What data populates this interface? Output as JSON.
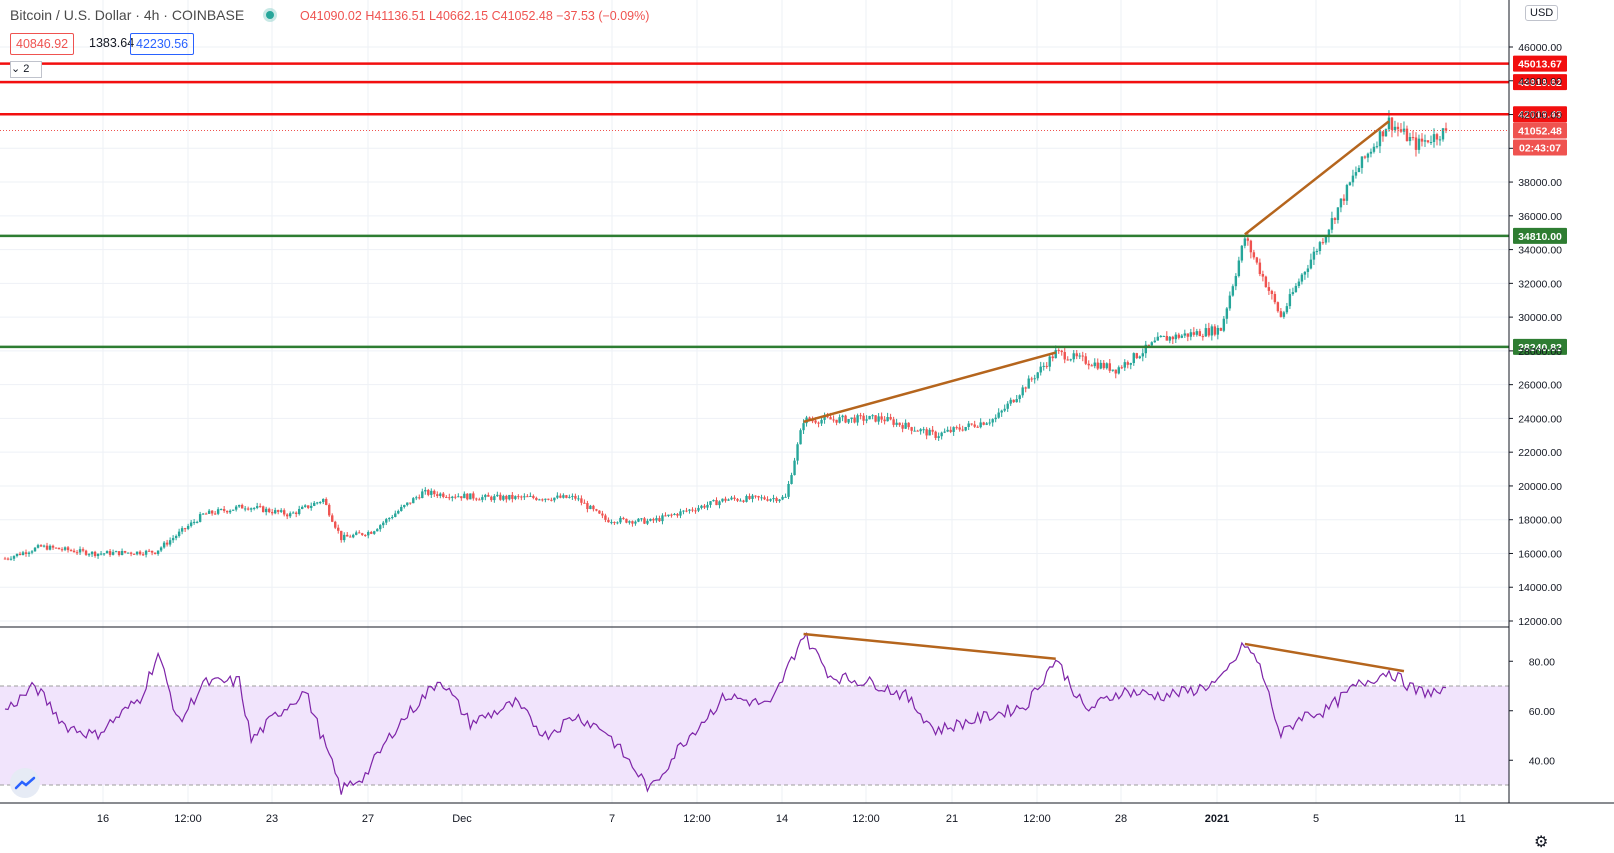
{
  "header": {
    "symbol": "Bitcoin / U.S. Dollar · 4h · COINBASE",
    "open": "O41090.02",
    "high": "H41136.51",
    "low": "L40662.15",
    "close": "C41052.48",
    "change": "−37.53 (−0.09%)",
    "bid": "40846.92",
    "spread": "1383.64",
    "ask": "42230.56",
    "collapse_label": "2"
  },
  "price_scale": {
    "currency": "USD",
    "ticks": [
      "46000.00",
      "44000.00",
      "42000.00",
      "40000.00",
      "38000.00",
      "36000.00",
      "34000.00",
      "32000.00",
      "30000.00",
      "28000.00",
      "26000.00",
      "24000.00",
      "22000.00",
      "20000.00",
      "18000.00",
      "16000.00",
      "14000.00",
      "12000.00"
    ],
    "last_price": "41052.48",
    "countdown": "02:43:07"
  },
  "rsi_scale": {
    "ticks": [
      "80.00",
      "60.00",
      "40.00"
    ]
  },
  "time_axis": {
    "labels": [
      "16",
      "12:00",
      "23",
      "27",
      "Dec",
      "7",
      "12:00",
      "14",
      "12:00",
      "21",
      "12:00",
      "28",
      "2021",
      "5",
      "11"
    ]
  },
  "horizontal_lines": [
    {
      "price": 45013.67,
      "label": "45013.67",
      "color": "#f20f0f"
    },
    {
      "price": 43919.62,
      "label": "43919.62",
      "color": "#f20f0f"
    },
    {
      "price": 42019.43,
      "label": "42019.43",
      "color": "#f20f0f"
    },
    {
      "price": 34810.0,
      "label": "34810.00",
      "color": "#2e7d32"
    },
    {
      "price": 28240.82,
      "label": "28240.82",
      "color": "#2e7d32"
    }
  ],
  "trend_lines": {
    "price": [
      {
        "from": 23800,
        "to": 27900
      },
      {
        "from": 34900,
        "to": 41600
      }
    ],
    "rsi": [
      {
        "from": 91,
        "to": 81
      },
      {
        "from": 87,
        "to": 76
      }
    ]
  },
  "colors": {
    "up": "#26a69a",
    "down": "#ef5350",
    "rsi": "#7e24a8",
    "rsi_band": "#f1e4fc",
    "trend": "#b5651d"
  },
  "chart_data": {
    "type": "candlestick",
    "title": "Bitcoin / U.S. Dollar · 4h · COINBASE",
    "x_labels": [
      "16",
      "12:00",
      "23",
      "27",
      "Dec",
      "7",
      "12:00",
      "14",
      "12:00",
      "21",
      "12:00",
      "28",
      "2021",
      "5",
      "11"
    ],
    "ylim": [
      12000,
      47000
    ],
    "price_path": [
      [
        0,
        15700
      ],
      [
        12,
        16400
      ],
      [
        30,
        16000
      ],
      [
        50,
        16100
      ],
      [
        66,
        18300
      ],
      [
        80,
        18800
      ],
      [
        95,
        18300
      ],
      [
        106,
        19200
      ],
      [
        112,
        16900
      ],
      [
        122,
        17300
      ],
      [
        139,
        19600
      ],
      [
        160,
        19300
      ],
      [
        190,
        19300
      ],
      [
        200,
        18000
      ],
      [
        215,
        17900
      ],
      [
        240,
        19200
      ],
      [
        260,
        19300
      ],
      [
        266,
        23900
      ],
      [
        292,
        24000
      ],
      [
        310,
        23000
      ],
      [
        330,
        24000
      ],
      [
        350,
        27900
      ],
      [
        370,
        26900
      ],
      [
        385,
        28700
      ],
      [
        405,
        29300
      ],
      [
        413,
        34700
      ],
      [
        420,
        32000
      ],
      [
        425,
        30000
      ],
      [
        432,
        32500
      ],
      [
        440,
        35000
      ],
      [
        450,
        38600
      ],
      [
        461,
        41600
      ],
      [
        470,
        40200
      ],
      [
        480,
        41052
      ]
    ],
    "last_close": 41052.48,
    "rsi": {
      "ylim": [
        25,
        97
      ],
      "band": [
        30,
        70
      ],
      "path": [
        [
          0,
          60
        ],
        [
          10,
          70
        ],
        [
          20,
          54
        ],
        [
          30,
          50
        ],
        [
          45,
          65
        ],
        [
          51,
          83
        ],
        [
          58,
          55
        ],
        [
          66,
          71
        ],
        [
          78,
          72
        ],
        [
          82,
          48
        ],
        [
          90,
          58
        ],
        [
          100,
          68
        ],
        [
          112,
          28
        ],
        [
          120,
          34
        ],
        [
          130,
          53
        ],
        [
          145,
          73
        ],
        [
          155,
          55
        ],
        [
          170,
          63
        ],
        [
          180,
          50
        ],
        [
          190,
          58
        ],
        [
          200,
          52
        ],
        [
          215,
          28
        ],
        [
          225,
          46
        ],
        [
          240,
          66
        ],
        [
          255,
          62
        ],
        [
          266,
          91
        ],
        [
          275,
          74
        ],
        [
          290,
          71
        ],
        [
          300,
          66
        ],
        [
          310,
          52
        ],
        [
          325,
          57
        ],
        [
          340,
          62
        ],
        [
          350,
          81
        ],
        [
          360,
          60
        ],
        [
          372,
          68
        ],
        [
          385,
          66
        ],
        [
          395,
          68
        ],
        [
          405,
          72
        ],
        [
          413,
          87
        ],
        [
          418,
          78
        ],
        [
          425,
          50
        ],
        [
          432,
          58
        ],
        [
          440,
          60
        ],
        [
          450,
          70
        ],
        [
          461,
          76
        ],
        [
          470,
          68
        ],
        [
          480,
          67
        ]
      ]
    }
  }
}
